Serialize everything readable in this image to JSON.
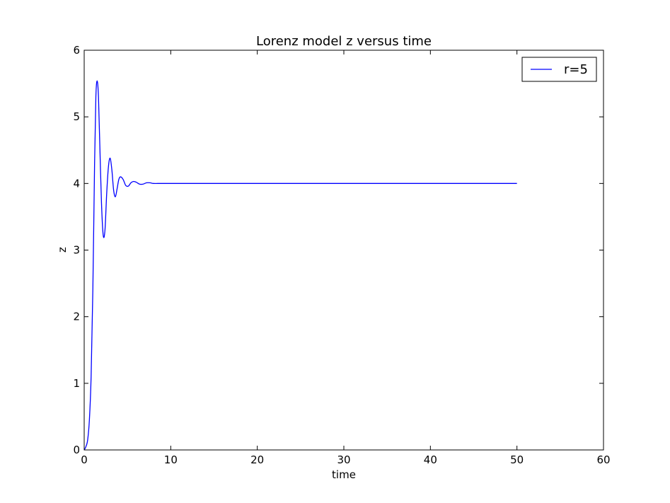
{
  "chart_data": {
    "type": "line",
    "title": "Lorenz model z versus time",
    "xlabel": "time",
    "ylabel": "z",
    "xlim": [
      0,
      60
    ],
    "ylim": [
      0,
      6
    ],
    "xticks": [
      "0",
      "10",
      "20",
      "30",
      "40",
      "50",
      "60"
    ],
    "yticks": [
      "0",
      "1",
      "2",
      "3",
      "4",
      "5",
      "6"
    ],
    "grid": false,
    "legend_position": "top-right",
    "series": [
      {
        "name": "r=5",
        "color": "#0000ff",
        "x": [
          0,
          0.2,
          0.4,
          0.6,
          0.8,
          1.0,
          1.2,
          1.35,
          1.5,
          1.65,
          1.8,
          2.0,
          2.2,
          2.4,
          2.6,
          2.8,
          3.0,
          3.2,
          3.4,
          3.6,
          3.8,
          4.0,
          4.2,
          4.5,
          4.8,
          5.1,
          5.4,
          5.7,
          6.0,
          6.4,
          6.8,
          7.2,
          7.6,
          8.0,
          8.5,
          9.0,
          10,
          15,
          20,
          30,
          40,
          50
        ],
        "y": [
          0,
          0.05,
          0.15,
          0.45,
          1.1,
          2.4,
          4.3,
          5.3,
          5.54,
          5.3,
          4.6,
          3.7,
          3.22,
          3.3,
          3.85,
          4.25,
          4.38,
          4.2,
          3.9,
          3.8,
          3.92,
          4.06,
          4.1,
          4.06,
          3.97,
          3.96,
          4.01,
          4.03,
          4.02,
          3.99,
          3.99,
          4.01,
          4.01,
          4.0,
          4.0,
          4.0,
          4.0,
          4.0,
          4.0,
          4.0,
          4.0,
          4.0
        ]
      }
    ]
  }
}
